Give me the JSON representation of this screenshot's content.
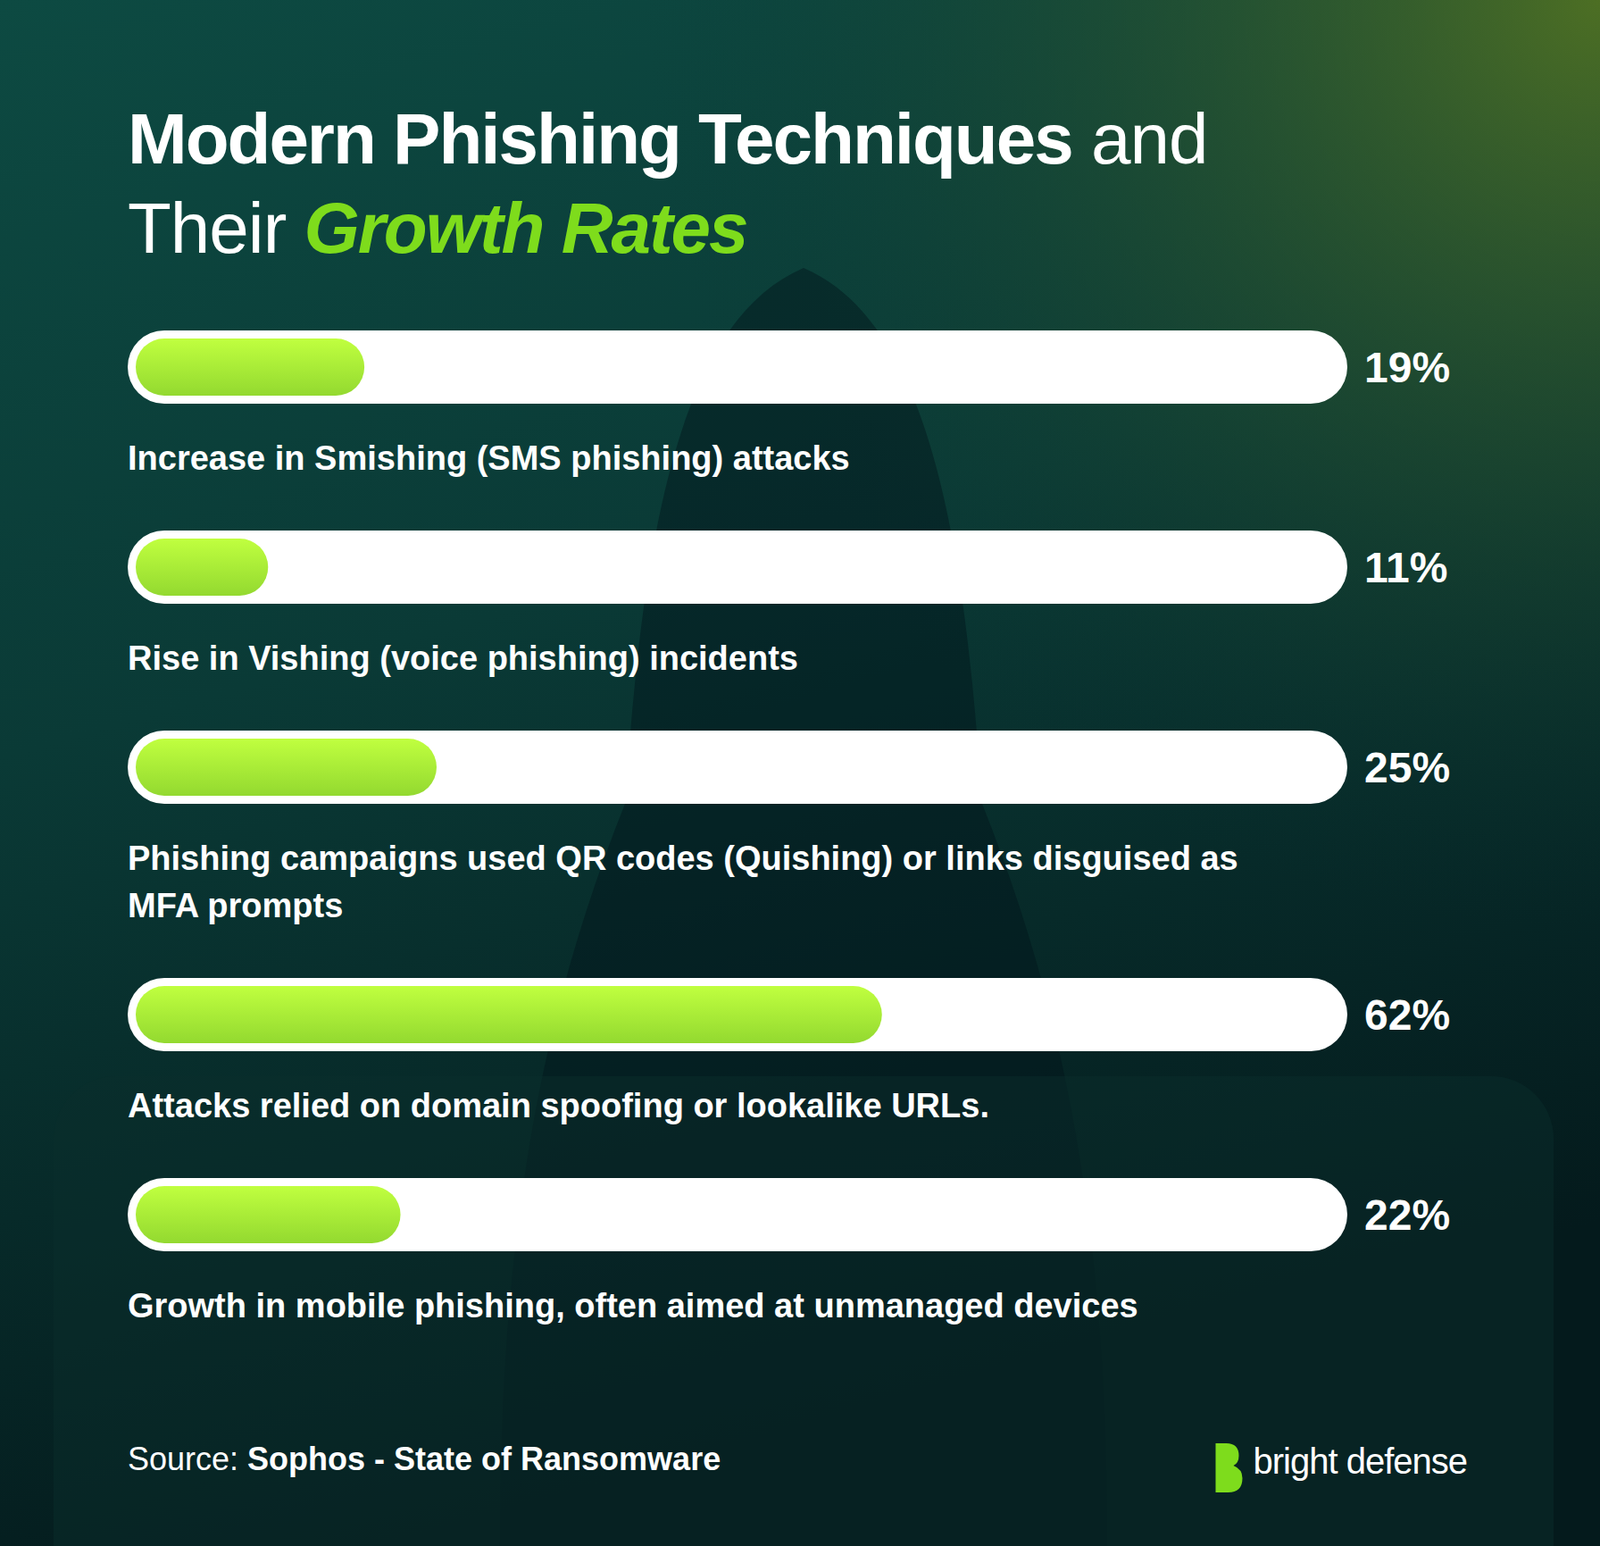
{
  "chart_data": {
    "type": "bar",
    "orientation": "horizontal",
    "title": "Modern Phishing Techniques and Their Growth Rates",
    "categories": [
      "Increase in Smishing (SMS phishing) attacks",
      "Rise in Vishing (voice phishing) incidents",
      "Phishing campaigns used QR codes (Quishing) or links disguised as MFA prompts",
      "Attacks relied on domain spoofing or lookalike URLs.",
      "Growth in mobile phishing, often aimed at unmanaged devices"
    ],
    "values": [
      19,
      11,
      25,
      62,
      22
    ],
    "value_labels": [
      "19%",
      "11%",
      "25%",
      "62%",
      "22%"
    ],
    "data_labels": true,
    "xlim": [
      0,
      100
    ],
    "tick_labels": false,
    "grid": false,
    "color": "#9be533",
    "source_label": "Source:",
    "source": "Sophos - State of Ransomware",
    "brand": "bright defense"
  }
}
